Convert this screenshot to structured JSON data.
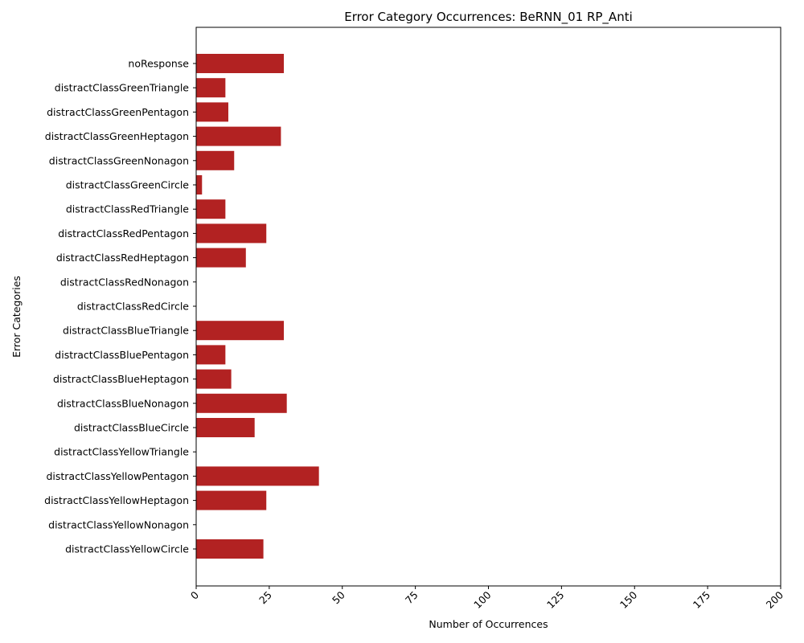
{
  "chart_data": {
    "type": "bar",
    "orientation": "horizontal",
    "title": "Error Category Occurrences: BeRNN_01 RP_Anti",
    "xlabel": "Number of Occurrences",
    "ylabel": "Error Categories",
    "xlim": [
      0,
      200
    ],
    "xticks": [
      0,
      25,
      50,
      75,
      100,
      125,
      150,
      175,
      200
    ],
    "xtick_rotation": 45,
    "bar_color": "#b22222",
    "grid": false,
    "categories": [
      "noResponse",
      "distractClassGreenTriangle",
      "distractClassGreenPentagon",
      "distractClassGreenHeptagon",
      "distractClassGreenNonagon",
      "distractClassGreenCircle",
      "distractClassRedTriangle",
      "distractClassRedPentagon",
      "distractClassRedHeptagon",
      "distractClassRedNonagon",
      "distractClassRedCircle",
      "distractClassBlueTriangle",
      "distractClassBluePentagon",
      "distractClassBlueHeptagon",
      "distractClassBlueNonagon",
      "distractClassBlueCircle",
      "distractClassYellowTriangle",
      "distractClassYellowPentagon",
      "distractClassYellowHeptagon",
      "distractClassYellowNonagon",
      "distractClassYellowCircle"
    ],
    "values": [
      30,
      10,
      11,
      29,
      13,
      2,
      10,
      24,
      17,
      0,
      0,
      30,
      10,
      12,
      31,
      20,
      0,
      42,
      24,
      0,
      23
    ]
  }
}
